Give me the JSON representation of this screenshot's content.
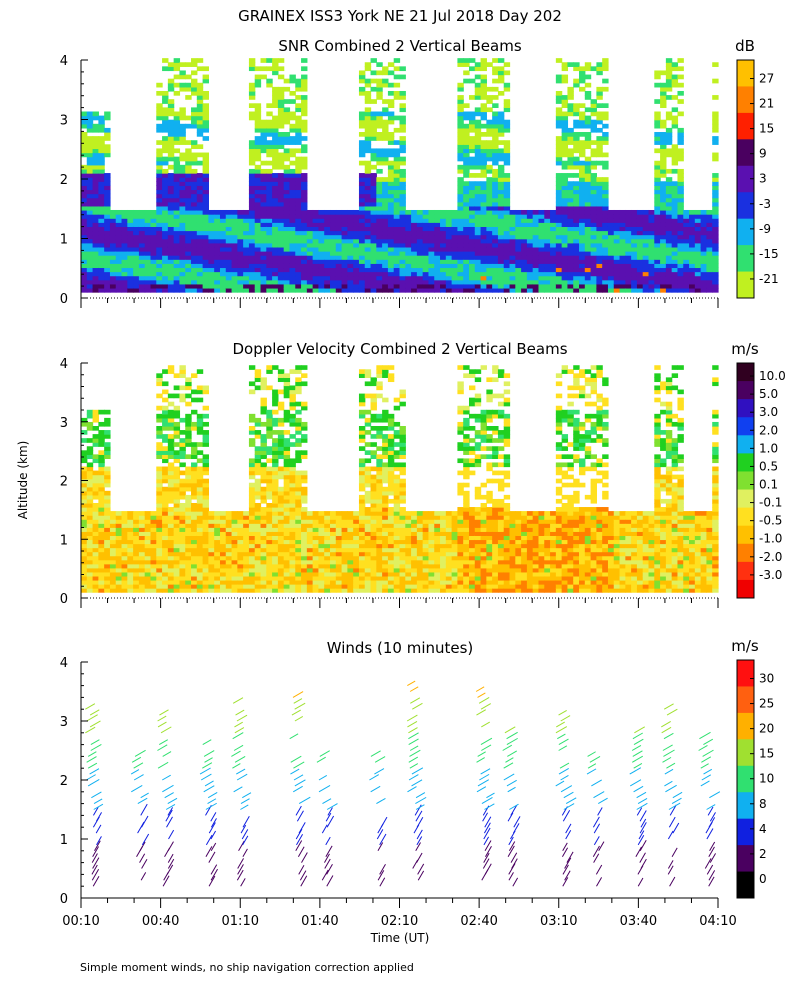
{
  "title": "GRAINEX ISS3 York NE  21 Jul 2018 Day 202",
  "ylabel": "Altitude (km)",
  "xlabel": "Time (UT)",
  "footnote": "Simple moment winds, no ship navigation correction applied",
  "x_ticks": [
    "00:10",
    "00:40",
    "01:10",
    "01:40",
    "02:10",
    "02:40",
    "03:10",
    "03:40",
    "04:10"
  ],
  "y_ticks": [
    "0",
    "1",
    "2",
    "3",
    "4"
  ],
  "chart_data": [
    {
      "type": "heatmap",
      "title": "SNR Combined 2 Vertical Beams",
      "x": [
        "00:10",
        "04:10"
      ],
      "y_range": [
        0,
        4
      ],
      "colorbar": {
        "unit": "dB",
        "labels": [
          "27",
          "21",
          "15",
          "9",
          "3",
          "-3",
          "-9",
          "-15",
          "-21"
        ],
        "colors": [
          "#ffc000",
          "#ff8000",
          "#ff2000",
          "#4a0060",
          "#5a10b0",
          "#1a30e0",
          "#10b0f0",
          "#30e070",
          "#c0f020"
        ]
      }
    },
    {
      "type": "heatmap",
      "title": "Doppler Velocity Combined 2 Vertical Beams",
      "x": [
        "00:10",
        "04:10"
      ],
      "y_range": [
        0,
        4
      ],
      "colorbar": {
        "unit": "m/s",
        "labels": [
          "10.0",
          "5.0",
          "3.0",
          "2.0",
          "1.0",
          "0.5",
          "0.1",
          "-0.1",
          "-0.5",
          "-1.0",
          "-2.0",
          "-3.0"
        ],
        "colors": [
          "#300020",
          "#4a0060",
          "#3010c0",
          "#1040f0",
          "#10b0f0",
          "#20d020",
          "#80e030",
          "#e0f060",
          "#ffe020",
          "#ffc000",
          "#ff8000",
          "#ff3010",
          "#f00000"
        ]
      }
    },
    {
      "type": "scatter",
      "title": "Winds (10 minutes)",
      "x": [
        "00:10",
        "04:10"
      ],
      "y_range": [
        0,
        4
      ],
      "colorbar": {
        "unit": "m/s",
        "labels": [
          "30",
          "25",
          "20",
          "15",
          "10",
          "8",
          "4",
          "2",
          "0"
        ],
        "colors": [
          "#ff1010",
          "#ff6010",
          "#ffb000",
          "#a0e030",
          "#30e070",
          "#10b0f0",
          "#1020e0",
          "#4a0060",
          "#000000"
        ]
      }
    }
  ]
}
